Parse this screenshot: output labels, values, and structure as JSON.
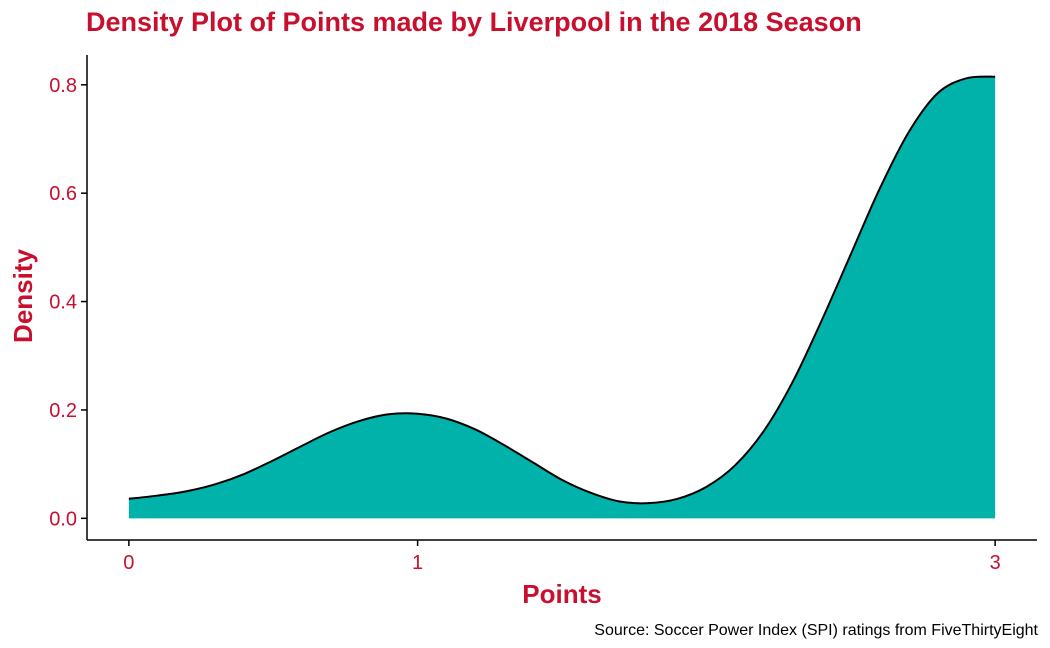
{
  "colors": {
    "accent": "#c8102e",
    "fill": "#00b2a9",
    "outline": "#000000",
    "axis": "#000000",
    "caption": "#000000"
  },
  "chart_data": {
    "type": "area",
    "title": "Density Plot of Points made by Liverpool in the 2018 Season",
    "xlabel": "Points",
    "ylabel": "Density",
    "caption": "Source: Soccer Power Index (SPI) ratings from FiveThirtyEight",
    "xlim": [
      -0.145,
      3.145
    ],
    "ylim": [
      -0.04,
      0.855
    ],
    "xticks": [
      0,
      1,
      3
    ],
    "xtick_labels": [
      "0",
      "1",
      "3"
    ],
    "yticks": [
      0.0,
      0.2,
      0.4,
      0.6,
      0.8
    ],
    "ytick_labels": [
      "0.0",
      "0.2",
      "0.4",
      "0.6",
      "0.8"
    ],
    "grid": false,
    "legend": "none",
    "series": [
      {
        "x": [
          0,
          0.1,
          0.2,
          0.3,
          0.4,
          0.5,
          0.6,
          0.7,
          0.8,
          0.9,
          1.0,
          1.1,
          1.2,
          1.3,
          1.4,
          1.5,
          1.6,
          1.7,
          1.8,
          1.9,
          2.0,
          2.1,
          2.2,
          2.3,
          2.4,
          2.5,
          2.6,
          2.7,
          2.8,
          2.9,
          3.0
        ],
        "values": [
          0.036,
          0.042,
          0.05,
          0.063,
          0.082,
          0.107,
          0.134,
          0.16,
          0.18,
          0.192,
          0.193,
          0.184,
          0.164,
          0.135,
          0.103,
          0.071,
          0.047,
          0.031,
          0.028,
          0.036,
          0.058,
          0.098,
          0.162,
          0.253,
          0.366,
          0.487,
          0.608,
          0.712,
          0.784,
          0.812,
          0.815
        ]
      }
    ]
  }
}
